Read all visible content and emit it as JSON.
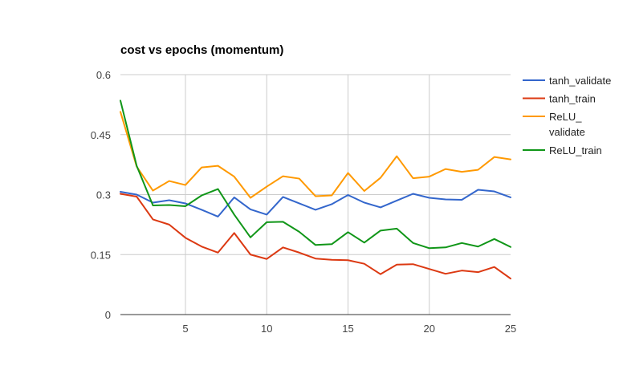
{
  "chart_data": {
    "type": "line",
    "title": "cost vs epochs (momentum)",
    "xlabel": "",
    "ylabel": "",
    "xlim": [
      1,
      25
    ],
    "ylim": [
      0,
      0.6
    ],
    "x_ticks": [
      "5",
      "10",
      "15",
      "20",
      "25"
    ],
    "y_ticks": [
      "0",
      "0.15",
      "0.3",
      "0.45",
      "0.6"
    ],
    "grid": true,
    "legend_position": "right",
    "x": [
      1,
      2,
      3,
      4,
      5,
      6,
      7,
      8,
      9,
      10,
      11,
      12,
      13,
      14,
      15,
      16,
      17,
      18,
      19,
      20,
      21,
      22,
      23,
      24,
      25
    ],
    "series": [
      {
        "name": "tanh_validate",
        "legend_lines": [
          "tanh_validate"
        ],
        "color": "#3366cc",
        "values": [
          0.307,
          0.3,
          0.28,
          0.286,
          0.278,
          0.262,
          0.245,
          0.293,
          0.263,
          0.25,
          0.294,
          0.278,
          0.262,
          0.276,
          0.299,
          0.28,
          0.268,
          0.285,
          0.302,
          0.292,
          0.288,
          0.287,
          0.312,
          0.308,
          0.293
        ]
      },
      {
        "name": "tanh_train",
        "legend_lines": [
          "tanh_train"
        ],
        "color": "#dc3912",
        "values": [
          0.302,
          0.295,
          0.238,
          0.225,
          0.192,
          0.17,
          0.155,
          0.204,
          0.15,
          0.139,
          0.168,
          0.155,
          0.14,
          0.137,
          0.136,
          0.127,
          0.101,
          0.125,
          0.126,
          0.114,
          0.102,
          0.11,
          0.106,
          0.119,
          0.09
        ]
      },
      {
        "name": "ReLU_ validate",
        "legend_lines": [
          "ReLU_",
          "validate"
        ],
        "color": "#ff9900",
        "values": [
          0.507,
          0.37,
          0.31,
          0.334,
          0.324,
          0.368,
          0.372,
          0.345,
          0.292,
          0.32,
          0.346,
          0.34,
          0.296,
          0.298,
          0.354,
          0.309,
          0.342,
          0.396,
          0.341,
          0.345,
          0.364,
          0.357,
          0.362,
          0.394,
          0.388
        ]
      },
      {
        "name": "ReLU_train",
        "legend_lines": [
          "ReLU_train"
        ],
        "color": "#109618",
        "values": [
          0.535,
          0.372,
          0.273,
          0.274,
          0.271,
          0.298,
          0.314,
          0.25,
          0.193,
          0.231,
          0.232,
          0.207,
          0.174,
          0.176,
          0.206,
          0.18,
          0.21,
          0.215,
          0.179,
          0.166,
          0.168,
          0.179,
          0.17,
          0.189,
          0.169
        ]
      }
    ]
  }
}
